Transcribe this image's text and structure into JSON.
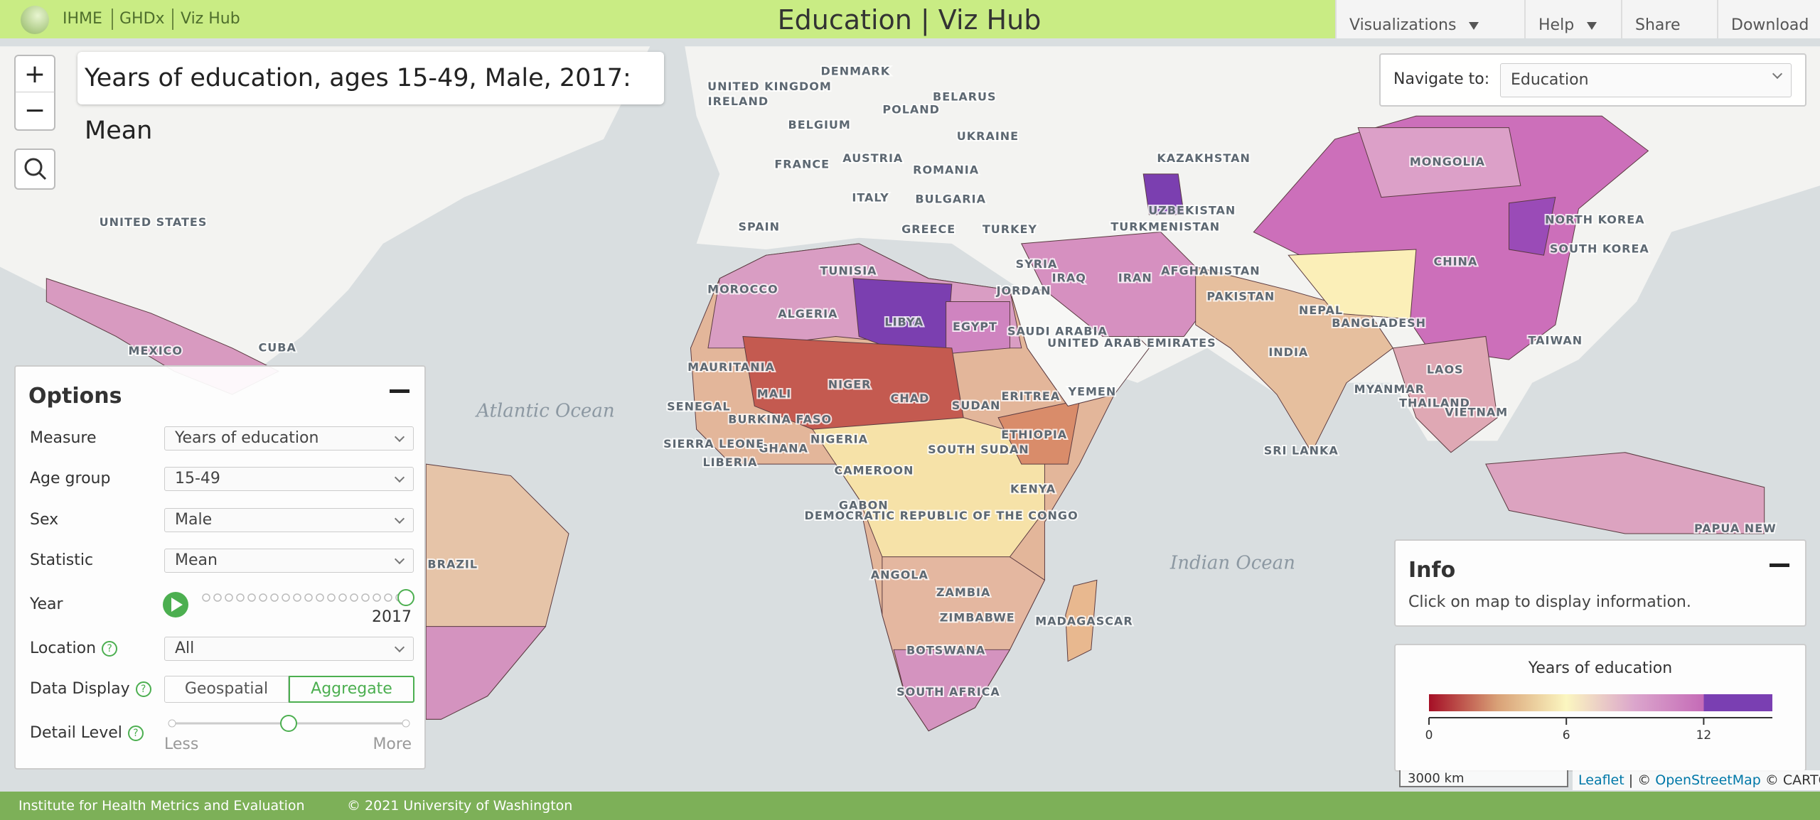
{
  "header": {
    "links": [
      "IHME",
      "GHDx",
      "Viz Hub"
    ],
    "title": "Education | Viz Hub",
    "nav": [
      "Visualizations",
      "Help",
      "Share",
      "Download"
    ]
  },
  "map": {
    "title": "Years of education, ages 15-49, Male, 2017: Mean",
    "zoom": [
      "+",
      "−"
    ],
    "labels": [
      "IRELAND",
      "DENMARK",
      "UNITED KINGDOM",
      "POLAND",
      "BELARUS",
      "BELGIUM",
      "UKRAINE",
      "AUSTRIA",
      "FRANCE",
      "ROMANIA",
      "KAZAKHSTAN",
      "MONGOLIA",
      "ITALY",
      "BULGARIA",
      "UZBEKISTAN",
      "NORTH KOREA",
      "SPAIN",
      "GREECE",
      "TURKEY",
      "TURKMENISTAN",
      "SOUTH KOREA",
      "UNITED STATES",
      "TUNISIA",
      "SYRIA",
      "IRAQ",
      "IRAN",
      "AFGHANISTAN",
      "CHINA",
      "MOROCCO",
      "JORDAN",
      "PAKISTAN",
      "NEPAL",
      "ALGERIA",
      "LIBYA",
      "EGYPT",
      "SAUDI ARABIA",
      "UNITED ARAB EMIRATES",
      "BANGLADESH",
      "TAIWAN",
      "MEXICO",
      "CUBA",
      "INDIA",
      "MAURITANIA",
      "MALI",
      "NIGER",
      "CHAD",
      "SUDAN",
      "ERITREA",
      "YEMEN",
      "SENEGAL",
      "MYANMAR",
      "LAOS",
      "THAILAND",
      "VIETNAM",
      "BURKINA FASO",
      "NIGERIA",
      "ETHIOPIA",
      "SOUTH SUDAN",
      "GHANA",
      "SIERRA LEONE",
      "LIBERIA",
      "SRI LANKA",
      "CAMEROON",
      "KENYA",
      "GABON",
      "DEMOCRATIC REPUBLIC OF THE CONGO",
      "PAPUA NEW",
      "ANGOLA",
      "ZAMBIA",
      "BRAZIL",
      "ZIMBABWE",
      "MADAGASCAR",
      "BOTSWANA",
      "SOUTH AFRICA"
    ],
    "oceans": [
      "Atlantic Ocean",
      "Indian Ocean"
    ],
    "scale": "3000 km",
    "attribution": [
      "Leaflet",
      "| ©",
      "OpenStreetMap",
      "© CARTO"
    ]
  },
  "navigate": {
    "label": "Navigate to:",
    "value": "Education"
  },
  "options": {
    "title": "Options",
    "help": "?",
    "rows": [
      {
        "label": "Measure",
        "value": "Years of education"
      },
      {
        "label": "Age group",
        "value": "15-49"
      },
      {
        "label": "Sex",
        "value": "Male"
      },
      {
        "label": "Statistic",
        "value": "Mean"
      }
    ],
    "year": {
      "label": "Year",
      "value": "2017"
    },
    "location": {
      "label": "Location",
      "value": "All"
    },
    "display": {
      "label": "Data Display",
      "buttons": [
        "Geospatial",
        "Aggregate"
      ]
    },
    "detail": {
      "label": "Detail Level",
      "min": "Less",
      "max": "More"
    }
  },
  "info": {
    "title": "Info",
    "text": "Click on map to display information."
  },
  "legend": {
    "title": "Years of education",
    "lim": [
      0,
      15
    ],
    "ticks": [
      0,
      6,
      12
    ]
  },
  "footer": [
    "Institute for Health Metrics and Evaluation",
    "© 2021 University of Washington"
  ]
}
